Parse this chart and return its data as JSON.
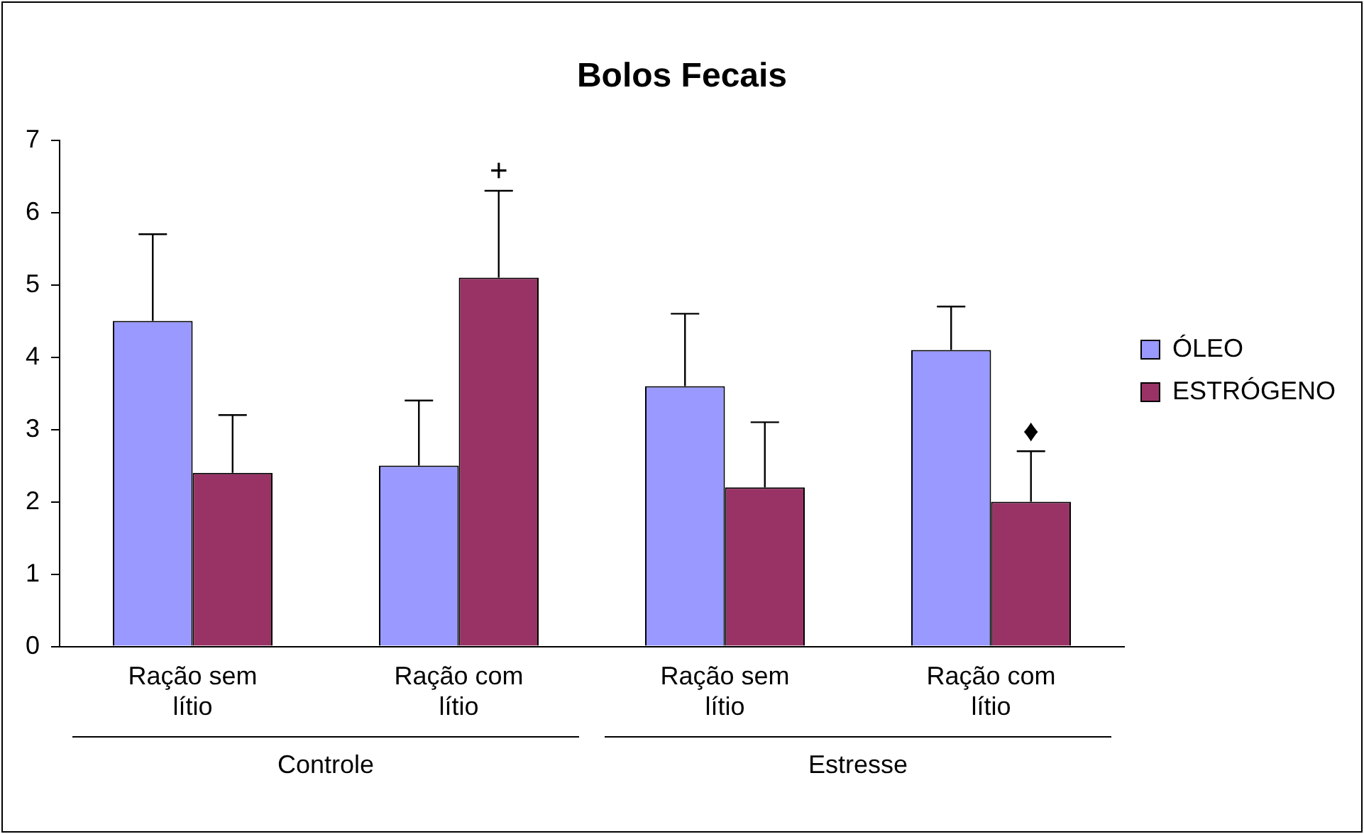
{
  "chart_data": {
    "type": "bar",
    "title": "Bolos Fecais",
    "categories": [
      "Ração sem lítio",
      "Ração com lítio",
      "Ração sem lítio",
      "Ração com lítio"
    ],
    "series": [
      {
        "name": "ÓLEO",
        "color": "#9999ff",
        "values": [
          4.5,
          2.5,
          3.6,
          4.1
        ],
        "errors": [
          [
            4.5,
            5.7
          ],
          [
            2.5,
            3.4
          ],
          [
            3.6,
            4.6
          ],
          [
            4.1,
            4.7
          ]
        ]
      },
      {
        "name": "ESTRÓGENO",
        "color": "#993366",
        "values": [
          2.4,
          5.1,
          2.2,
          2.0
        ],
        "errors": [
          [
            2.4,
            3.2
          ],
          [
            5.1,
            6.3
          ],
          [
            2.2,
            3.1
          ],
          [
            2.0,
            2.7
          ]
        ],
        "value_labels": [
          null,
          "+",
          null,
          "♦"
        ]
      }
    ],
    "annotations": [
      "Controle",
      "Estresse"
    ],
    "ylim": [
      0,
      7
    ],
    "yticks": [
      0,
      1,
      2,
      3,
      4,
      5,
      6,
      7
    ],
    "grid": false,
    "legend": "right"
  }
}
